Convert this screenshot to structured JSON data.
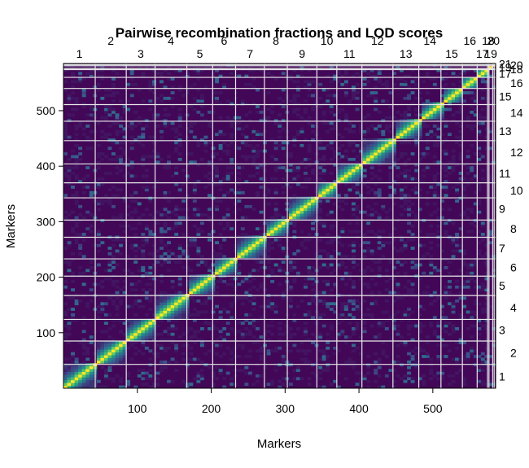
{
  "chart_data": {
    "type": "heatmap",
    "title": "Pairwise recombination fractions and LOD scores",
    "xlabel": "Markers",
    "ylabel": "Markers",
    "xlim": [
      0,
      585
    ],
    "ylim": [
      0,
      585
    ],
    "x_ticks": [
      100,
      200,
      300,
      400,
      500
    ],
    "y_ticks": [
      100,
      200,
      300,
      400,
      500
    ],
    "colormap": [
      "#440154",
      "#3b528b",
      "#21908c",
      "#5dc963",
      "#fde725"
    ],
    "chromosome_boundaries": [
      0,
      43,
      85,
      124,
      167,
      202,
      233,
      272,
      303,
      343,
      370,
      404,
      446,
      481,
      511,
      540,
      560,
      574,
      576,
      581,
      583,
      585
    ],
    "chromosomes": [
      "1",
      "2",
      "3",
      "4",
      "5",
      "6",
      "7",
      "8",
      "9",
      "10",
      "11",
      "12",
      "13",
      "14",
      "15",
      "16",
      "17",
      "18",
      "19",
      "20",
      "21"
    ],
    "top_labels": [
      "1",
      "2",
      "3",
      "4",
      "5",
      "6",
      "7",
      "8",
      "9",
      "10",
      "11",
      "12",
      "13",
      "14",
      "15",
      "16",
      "17",
      "18",
      "19",
      "20"
    ],
    "right_labels": [
      "1",
      "2",
      "3",
      "4",
      "5",
      "6",
      "7",
      "8",
      "9",
      "10",
      "11",
      "12",
      "13",
      "14",
      "15",
      "16",
      "17",
      "18",
      "19",
      "20",
      "21"
    ]
  }
}
